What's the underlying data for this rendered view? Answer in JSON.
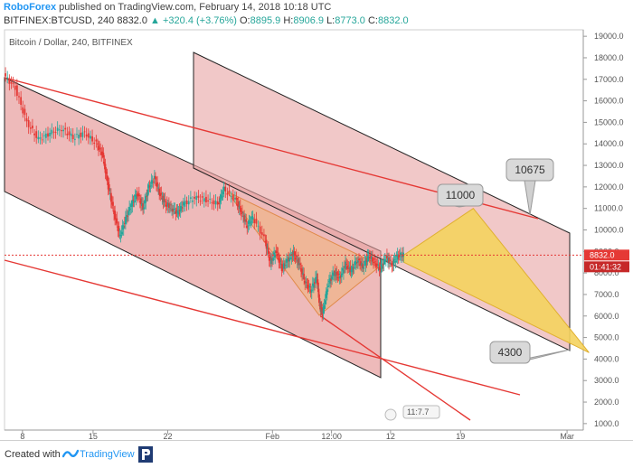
{
  "header": {
    "author": "RoboForex",
    "published_text": " published on TradingView.com, February 14, 2018 10:18 UTC",
    "symbol": "BITFINEX:BTCUSD, 240",
    "last": "8832.0",
    "change": "▲ +320.4 (+3.76%)",
    "ohlc_o_label": "O:",
    "ohlc_o": "8895.9",
    "ohlc_h_label": "H:",
    "ohlc_h": "8906.9",
    "ohlc_l_label": "L:",
    "ohlc_l": "8773.0",
    "ohlc_c_label": "C:",
    "ohlc_c": "8832.0"
  },
  "chart_data": {
    "type": "line",
    "title": "Bitcoin / Dollar, 240, BITFINEX",
    "y_ticks": [
      "19000.0",
      "18000.0",
      "17000.0",
      "16000.0",
      "15000.0",
      "14000.0",
      "13000.0",
      "12000.0",
      "11000.0",
      "10000.0",
      "9000.0",
      "8000.0",
      "7000.0",
      "6000.0",
      "5000.0",
      "4000.0",
      "3000.0",
      "2000.0",
      "1000.0"
    ],
    "x_ticks": [
      {
        "label": "8",
        "x": 0.031
      },
      {
        "label": "15",
        "x": 0.153
      },
      {
        "label": "22",
        "x": 0.282
      },
      {
        "label": "Feb",
        "x": 0.463
      },
      {
        "label": "12:00",
        "x": 0.565
      },
      {
        "label": "12",
        "x": 0.667
      },
      {
        "label": "19",
        "x": 0.788
      },
      {
        "label": "Mar",
        "x": 0.972
      }
    ],
    "ylim": [
      700,
      19300
    ],
    "price_path": [
      [
        0,
        17200
      ],
      [
        0.02,
        16600
      ],
      [
        0.04,
        15000
      ],
      [
        0.06,
        14200
      ],
      [
        0.08,
        14500
      ],
      [
        0.1,
        14700
      ],
      [
        0.12,
        14300
      ],
      [
        0.14,
        14500
      ],
      [
        0.16,
        14000
      ],
      [
        0.17,
        13500
      ],
      [
        0.18,
        12000
      ],
      [
        0.19,
        10800
      ],
      [
        0.2,
        9700
      ],
      [
        0.21,
        10500
      ],
      [
        0.22,
        11200
      ],
      [
        0.23,
        11700
      ],
      [
        0.24,
        11000
      ],
      [
        0.25,
        12000
      ],
      [
        0.26,
        12400
      ],
      [
        0.27,
        11600
      ],
      [
        0.28,
        11200
      ],
      [
        0.29,
        11000
      ],
      [
        0.3,
        10800
      ],
      [
        0.31,
        11200
      ],
      [
        0.33,
        11500
      ],
      [
        0.35,
        11400
      ],
      [
        0.37,
        11200
      ],
      [
        0.38,
        11900
      ],
      [
        0.4,
        11400
      ],
      [
        0.41,
        10800
      ],
      [
        0.42,
        10200
      ],
      [
        0.43,
        10600
      ],
      [
        0.45,
        9600
      ],
      [
        0.46,
        8500
      ],
      [
        0.47,
        9000
      ],
      [
        0.48,
        8200
      ],
      [
        0.49,
        8600
      ],
      [
        0.5,
        8900
      ],
      [
        0.51,
        8400
      ],
      [
        0.52,
        7600
      ],
      [
        0.53,
        7200
      ],
      [
        0.54,
        7800
      ],
      [
        0.545,
        6500
      ],
      [
        0.55,
        6100
      ],
      [
        0.56,
        7500
      ],
      [
        0.57,
        8000
      ],
      [
        0.58,
        7800
      ],
      [
        0.59,
        8400
      ],
      [
        0.6,
        8100
      ],
      [
        0.61,
        8600
      ],
      [
        0.62,
        8300
      ],
      [
        0.63,
        8800
      ],
      [
        0.64,
        8500
      ],
      [
        0.65,
        8200
      ],
      [
        0.66,
        8700
      ],
      [
        0.67,
        8400
      ],
      [
        0.68,
        8800
      ],
      [
        0.69,
        8832
      ]
    ],
    "projection": {
      "from": [
        0.69,
        8832
      ],
      "peak": [
        0.81,
        11000
      ],
      "end": [
        1.01,
        4300
      ]
    },
    "annotations": [
      {
        "label": "11000",
        "value": 11000
      },
      {
        "label": "10675",
        "value": 10675
      },
      {
        "label": "4300",
        "value": 4300
      }
    ],
    "price_tags": [
      {
        "label": "8832.0",
        "value": 8832
      },
      {
        "label": "01:41:32",
        "value": 8200
      }
    ],
    "event_marker_label": "11:7.7"
  },
  "colors": {
    "channel_fill": "#e8a3a3",
    "channel_stroke": "#222222",
    "trend_line": "#e53935",
    "projection_fill": "#f4d35e",
    "up_candle": "#26a69a",
    "down_candle": "#e53935",
    "price_tag_bg": "#e53935",
    "timer_tag_bg": "#c62828"
  },
  "footer": {
    "created": "Created with",
    "brand": "TradingView"
  }
}
